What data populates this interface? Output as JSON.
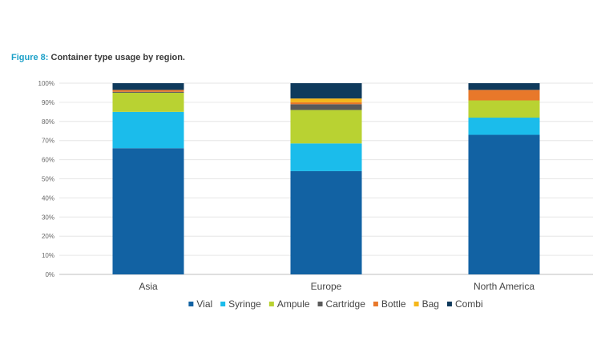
{
  "figure": {
    "label": "Figure 8:",
    "caption": "Container type usage by region."
  },
  "chart_data": {
    "type": "bar",
    "stacked": true,
    "categories": [
      "Asia",
      "Europe",
      "North America"
    ],
    "ylim": [
      0,
      100
    ],
    "yticks": [
      0,
      10,
      20,
      30,
      40,
      50,
      60,
      70,
      80,
      90,
      100
    ],
    "ytick_labels": [
      "0%",
      "10%",
      "20%",
      "30%",
      "40%",
      "50%",
      "60%",
      "70%",
      "80%",
      "90%",
      "100%"
    ],
    "grid": true,
    "legend_position": "bottom",
    "series": [
      {
        "name": "Vial",
        "color": "#1262a3",
        "values": [
          66,
          54,
          73
        ]
      },
      {
        "name": "Syringe",
        "color": "#1bbceb",
        "values": [
          19,
          14.5,
          9
        ]
      },
      {
        "name": "Ampule",
        "color": "#b9d232",
        "values": [
          10,
          17.5,
          9
        ]
      },
      {
        "name": "Cartridge",
        "color": "#5a5a5a",
        "values": [
          0.5,
          3,
          0
        ]
      },
      {
        "name": "Bottle",
        "color": "#e8782a",
        "values": [
          1,
          1,
          5.5
        ]
      },
      {
        "name": "Bag",
        "color": "#f5b71b",
        "values": [
          0,
          2,
          0
        ]
      },
      {
        "name": "Combi",
        "color": "#0f3a5c",
        "values": [
          3.5,
          8,
          3.5
        ]
      }
    ]
  }
}
